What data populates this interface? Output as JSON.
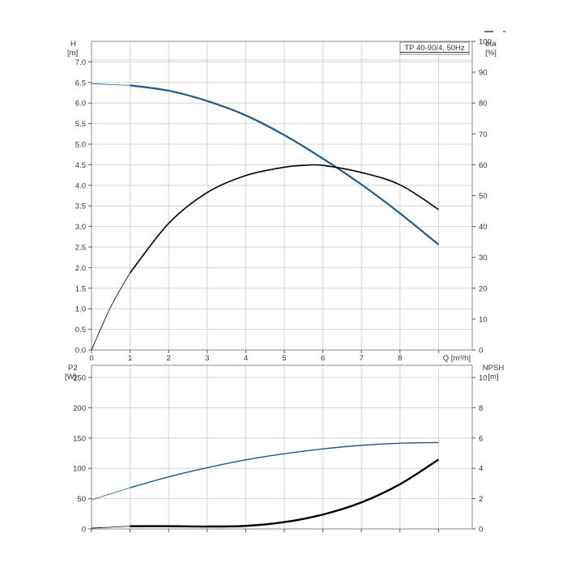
{
  "chart_data": [
    {
      "type": "line",
      "title": "TP 40-90/4, 50Hz",
      "x_axis": {
        "label": "Q [m³/h]",
        "range": [
          0,
          9
        ],
        "ticks": [
          "0",
          "1",
          "2",
          "3",
          "4",
          "5",
          "6",
          "7",
          "8"
        ]
      },
      "y_axis_left": {
        "label_line1": "H",
        "label_line2": "[m]",
        "range": [
          0,
          7.5
        ],
        "ticks": [
          "0.0",
          "0.5",
          "1.0",
          "1.5",
          "2.0",
          "2.5",
          "3.0",
          "3.5",
          "4.0",
          "4.5",
          "5.0",
          "5.5",
          "6.0",
          "6.5",
          "7.0"
        ]
      },
      "y_axis_right": {
        "label_line1": "eta",
        "label_line2": "[%]",
        "range": [
          0,
          100
        ],
        "ticks": [
          "0",
          "10",
          "20",
          "30",
          "40",
          "50",
          "60",
          "70",
          "80",
          "90",
          "100"
        ]
      },
      "grid": true,
      "series": [
        {
          "axis": "left",
          "color": "#1f5a8a",
          "points": [
            [
              0,
              6.47
            ],
            [
              1,
              6.43
            ],
            [
              2,
              6.3
            ],
            [
              3,
              6.05
            ],
            [
              4,
              5.7
            ],
            [
              5,
              5.22
            ],
            [
              6,
              4.65
            ],
            [
              7,
              4.02
            ],
            [
              8,
              3.32
            ],
            [
              9,
              2.56
            ]
          ]
        },
        {
          "axis": "right",
          "color": "#000000",
          "points": [
            [
              0,
              0
            ],
            [
              0.5,
              14
            ],
            [
              1,
              25
            ],
            [
              2,
              41
            ],
            [
              3,
              51
            ],
            [
              4,
              56.5
            ],
            [
              5,
              59.2
            ],
            [
              5.5,
              59.8
            ],
            [
              6,
              59.8
            ],
            [
              7,
              57.5
            ],
            [
              8,
              53.5
            ],
            [
              9,
              45.5
            ]
          ]
        }
      ]
    },
    {
      "type": "line",
      "x_axis": {
        "range": [
          0,
          9
        ]
      },
      "y_axis_left": {
        "label_line1": "P2",
        "label_line2": "[W]",
        "range": [
          0,
          270
        ],
        "ticks": [
          "0",
          "50",
          "100",
          "150",
          "200",
          "250"
        ]
      },
      "y_axis_right": {
        "label_line1": "NPSH",
        "label_line2": "[m]",
        "range": [
          0,
          10.8
        ],
        "ticks": [
          "0",
          "2",
          "4",
          "6",
          "8",
          "10"
        ]
      },
      "grid": true,
      "series": [
        {
          "axis": "left",
          "color": "#1f5a8a",
          "points": [
            [
              0,
              48
            ],
            [
              1,
              68
            ],
            [
              2,
              86
            ],
            [
              3,
              101
            ],
            [
              4,
              114
            ],
            [
              5,
              124
            ],
            [
              6,
              132
            ],
            [
              7,
              138
            ],
            [
              8,
              141.5
            ],
            [
              9,
              142.5
            ]
          ]
        },
        {
          "axis": "right",
          "color": "#000000",
          "points": [
            [
              0,
              0.05
            ],
            [
              1,
              0.18
            ],
            [
              2,
              0.18
            ],
            [
              3,
              0.16
            ],
            [
              4,
              0.2
            ],
            [
              5,
              0.45
            ],
            [
              6,
              0.95
            ],
            [
              7,
              1.75
            ],
            [
              8,
              2.95
            ],
            [
              9,
              4.58
            ]
          ]
        }
      ]
    }
  ]
}
